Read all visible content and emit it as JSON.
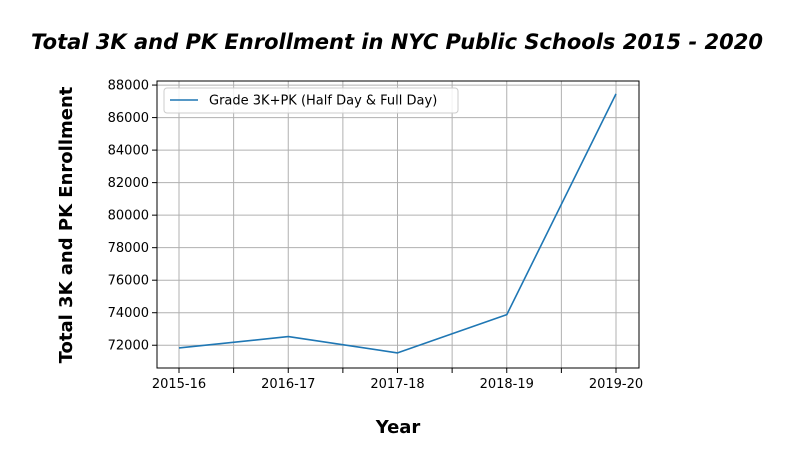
{
  "chart_data": {
    "type": "line",
    "title": "Total 3K and PK Enrollment in NYC Public Schools 2015 - 2020",
    "xlabel": "Year",
    "ylabel": "Total 3K and PK Enrollment",
    "categories": [
      "2015-16",
      "2016-17",
      "2017-18",
      "2018-19",
      "2019-20"
    ],
    "series": [
      {
        "name": "Grade 3K+PK (Half Day & Full Day)",
        "values": [
          71838,
          72530,
          71526,
          73882,
          87458
        ],
        "color": "#1f77b4"
      }
    ],
    "yticks": [
      72000,
      74000,
      76000,
      78000,
      80000,
      82000,
      84000,
      86000,
      88000
    ],
    "ytick_labels": [
      "72000",
      "74000",
      "76000",
      "78000",
      "80000",
      "82000",
      "84000",
      "86000",
      "88000"
    ],
    "ylim": [
      70600,
      88250
    ],
    "grid": true,
    "legend_position": "upper-left"
  }
}
